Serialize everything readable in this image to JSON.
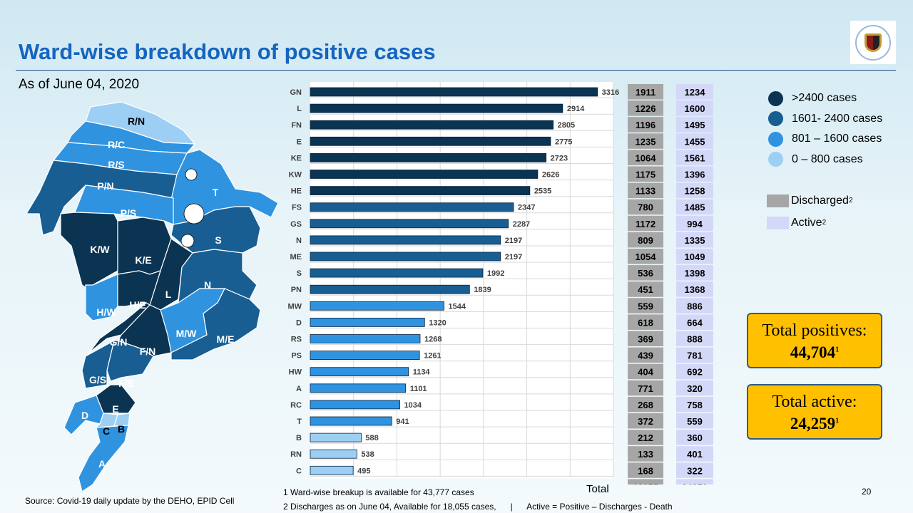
{
  "header": {
    "title": "Ward-wise breakdown of positive cases",
    "as_of": "As of June 04, 2020",
    "logo": "municipal-corporation-seal"
  },
  "colors": {
    "gt2400": "#0b3352",
    "r1601_2400": "#185e93",
    "r801_1600": "#2f93e0",
    "r0_800": "#9ccff3",
    "discharged": "#a6a6a6",
    "active": "#d4d8f8",
    "total_box": "#ffc000",
    "title": "#1565c0"
  },
  "legend": {
    "categories": [
      {
        "label": ">2400 cases",
        "color": "#0b3352"
      },
      {
        "label": "1601- 2400 cases",
        "color": "#185e93"
      },
      {
        "label": "801 – 1600 cases",
        "color": "#2f93e0"
      },
      {
        "label": "0 – 800 cases",
        "color": "#9ccff3"
      }
    ],
    "discharged": "Discharged",
    "active": "Active",
    "sup": "2"
  },
  "map": {
    "wards": [
      {
        "label": "R/N",
        "cat": 3
      },
      {
        "label": "R/C",
        "cat": 2
      },
      {
        "label": "R/S",
        "cat": 2
      },
      {
        "label": "P/N",
        "cat": 1
      },
      {
        "label": "T",
        "cat": 2
      },
      {
        "label": "P/S",
        "cat": 2
      },
      {
        "label": "S",
        "cat": 1
      },
      {
        "label": "K/W",
        "cat": 0
      },
      {
        "label": "K/E",
        "cat": 0
      },
      {
        "label": "L",
        "cat": 0
      },
      {
        "label": "N",
        "cat": 1
      },
      {
        "label": "H/W",
        "cat": 2
      },
      {
        "label": "H/E",
        "cat": 0
      },
      {
        "label": "M/W",
        "cat": 2
      },
      {
        "label": "M/E",
        "cat": 1
      },
      {
        "label": "G/N",
        "cat": 0
      },
      {
        "label": "F/N",
        "cat": 0
      },
      {
        "label": "G/S",
        "cat": 1
      },
      {
        "label": "F/S",
        "cat": 1
      },
      {
        "label": "E",
        "cat": 0
      },
      {
        "label": "D",
        "cat": 2
      },
      {
        "label": "C",
        "cat": 3
      },
      {
        "label": "B",
        "cat": 3
      },
      {
        "label": "A",
        "cat": 2
      }
    ]
  },
  "chart_data": {
    "type": "bar",
    "orientation": "horizontal",
    "categories": [
      "GN",
      "L",
      "FN",
      "E",
      "KE",
      "KW",
      "HE",
      "FS",
      "GS",
      "N",
      "ME",
      "S",
      "PN",
      "MW",
      "D",
      "RS",
      "PS",
      "HW",
      "A",
      "RC",
      "T",
      "B",
      "RN",
      "C"
    ],
    "values": [
      3316,
      2914,
      2805,
      2775,
      2723,
      2626,
      2535,
      2347,
      2287,
      2197,
      2197,
      1992,
      1839,
      1544,
      1320,
      1268,
      1261,
      1134,
      1101,
      1034,
      941,
      588,
      538,
      495
    ],
    "xlim": [
      0,
      3500
    ],
    "grid": true,
    "table": {
      "discharged": [
        1911,
        1226,
        1196,
        1235,
        1064,
        1175,
        1133,
        780,
        1172,
        809,
        1054,
        536,
        451,
        559,
        618,
        369,
        439,
        404,
        771,
        268,
        372,
        212,
        133,
        168
      ],
      "active": [
        1234,
        1600,
        1495,
        1455,
        1561,
        1396,
        1258,
        1485,
        994,
        1335,
        1049,
        1398,
        1368,
        886,
        664,
        888,
        781,
        692,
        320,
        758,
        559,
        360,
        401,
        322
      ],
      "total_label": "Total",
      "total_discharged": "18055",
      "total_active": "24259"
    }
  },
  "totals": {
    "positives_label": "Total positives:",
    "positives_value": "44,704",
    "active_label": "Total active:",
    "active_value": "24,259",
    "sup": "1"
  },
  "footer": {
    "source": "Source: Covid-19 daily update by the DEHO, EPID Cell",
    "note1": "1 Ward-wise breakup is available for 43,777 cases",
    "note2": "2 Discharges as on June 04, Available for 18,055 cases,      |      Active = Positive – Discharges - Death",
    "page": "20"
  }
}
